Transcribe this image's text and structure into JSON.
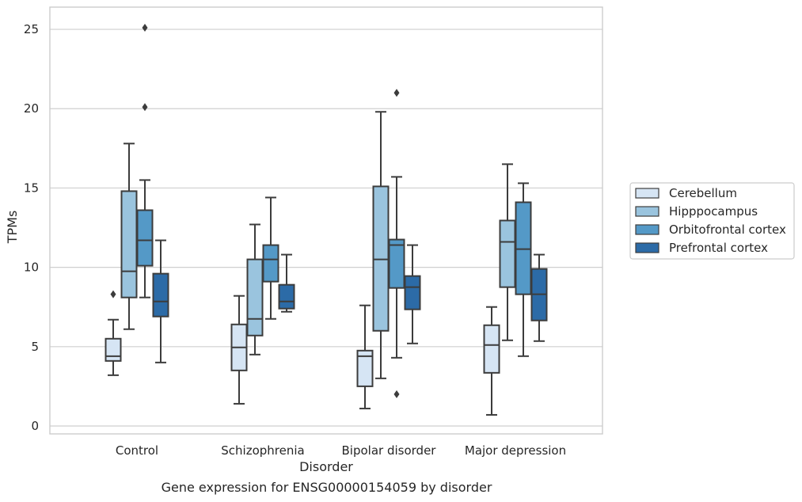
{
  "caption": "Gene expression for ENSG00000154059 by disorder",
  "chart_data": {
    "type": "box",
    "xlabel": "Disorder",
    "ylabel": "TPMs",
    "ylim": [
      -0.5,
      26.4
    ],
    "yticks": [
      0,
      5,
      10,
      15,
      20,
      25
    ],
    "grid": "horizontal",
    "legend_placement": "right",
    "categories": [
      "Control",
      "Schizophrenia",
      "Bipolar disorder",
      "Major depression"
    ],
    "series": [
      {
        "name": "Cerebellum",
        "color": "#d6e5f4",
        "boxes": [
          {
            "whislo": 3.2,
            "q1": 4.1,
            "med": 4.4,
            "q3": 5.5,
            "whishi": 6.7,
            "fliers": [
              8.3
            ]
          },
          {
            "whislo": 1.4,
            "q1": 3.5,
            "med": 4.95,
            "q3": 6.4,
            "whishi": 8.2,
            "fliers": []
          },
          {
            "whislo": 1.1,
            "q1": 2.5,
            "med": 4.4,
            "q3": 4.75,
            "whishi": 7.6,
            "fliers": []
          },
          {
            "whislo": 0.7,
            "q1": 3.35,
            "med": 5.1,
            "q3": 6.35,
            "whishi": 7.5,
            "fliers": []
          }
        ]
      },
      {
        "name": "Hipppocampus",
        "color": "#9ac4de",
        "boxes": [
          {
            "whislo": 6.1,
            "q1": 8.1,
            "med": 9.75,
            "q3": 14.8,
            "whishi": 17.8,
            "fliers": []
          },
          {
            "whislo": 4.5,
            "q1": 5.7,
            "med": 6.75,
            "q3": 10.5,
            "whishi": 12.7,
            "fliers": []
          },
          {
            "whislo": 3.0,
            "q1": 6.0,
            "med": 10.5,
            "q3": 15.1,
            "whishi": 19.8,
            "fliers": []
          },
          {
            "whislo": 5.4,
            "q1": 8.75,
            "med": 11.6,
            "q3": 12.95,
            "whishi": 16.5,
            "fliers": []
          }
        ]
      },
      {
        "name": "Orbitofrontal cortex",
        "color": "#5499c7",
        "boxes": [
          {
            "whislo": 8.1,
            "q1": 10.1,
            "med": 11.7,
            "q3": 13.6,
            "whishi": 15.5,
            "fliers": [
              20.1,
              25.1
            ]
          },
          {
            "whislo": 6.75,
            "q1": 9.1,
            "med": 10.5,
            "q3": 11.4,
            "whishi": 14.4,
            "fliers": []
          },
          {
            "whislo": 4.3,
            "q1": 8.7,
            "med": 11.4,
            "q3": 11.75,
            "whishi": 15.7,
            "fliers": [
              2.0,
              21.0
            ]
          },
          {
            "whislo": 4.4,
            "q1": 8.3,
            "med": 11.15,
            "q3": 14.1,
            "whishi": 15.3,
            "fliers": []
          }
        ]
      },
      {
        "name": "Prefrontal cortex",
        "color": "#2c6ba7",
        "boxes": [
          {
            "whislo": 4.0,
            "q1": 6.9,
            "med": 7.85,
            "q3": 9.6,
            "whishi": 11.7,
            "fliers": []
          },
          {
            "whislo": 7.2,
            "q1": 7.4,
            "med": 7.85,
            "q3": 8.9,
            "whishi": 10.8,
            "fliers": []
          },
          {
            "whislo": 5.2,
            "q1": 7.35,
            "med": 8.75,
            "q3": 9.45,
            "whishi": 11.4,
            "fliers": []
          },
          {
            "whislo": 5.35,
            "q1": 6.65,
            "med": 8.3,
            "q3": 9.9,
            "whishi": 10.8,
            "fliers": []
          }
        ]
      }
    ]
  }
}
